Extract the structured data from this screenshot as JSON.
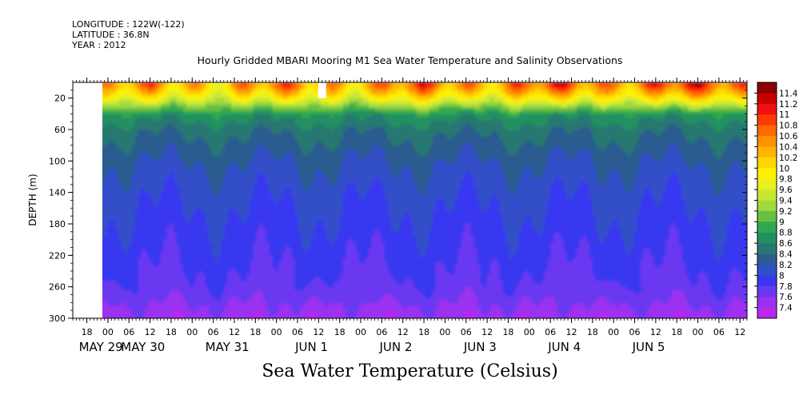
{
  "header": {
    "longitude": "LONGITUDE : 122W(-122)",
    "latitude": "LATITUDE : 36.8N",
    "year": "YEAR : 2012"
  },
  "title": "Hourly Gridded MBARI Mooring M1 Sea Water Temperature and Salinity Observations",
  "bottom_title": "Sea Water Temperature (Celsius)",
  "chart_data": {
    "type": "heatmap",
    "title": "Hourly Gridded MBARI Mooring M1 Sea Water Temperature and Salinity Observations",
    "xlabel": "",
    "ylabel": "DEPTH (m)",
    "variable": "Sea Water Temperature (Celsius)",
    "y_axis": {
      "range": [
        0,
        300
      ],
      "reversed": true,
      "ticks": [
        20,
        60,
        100,
        140,
        180,
        220,
        260,
        300
      ]
    },
    "x_axis": {
      "start": "2012-05-28T14:00",
      "end": "2012-06-05T14:00",
      "hour_ticks": [
        {
          "t": "2012-05-28T18:00",
          "label": "18"
        },
        {
          "t": "2012-05-29T00:00",
          "label": "00"
        },
        {
          "t": "2012-05-29T06:00",
          "label": "06"
        },
        {
          "t": "2012-05-29T12:00",
          "label": "12"
        },
        {
          "t": "2012-05-29T18:00",
          "label": "18"
        },
        {
          "t": "2012-05-30T00:00",
          "label": "00"
        },
        {
          "t": "2012-05-30T06:00",
          "label": "06"
        },
        {
          "t": "2012-05-30T12:00",
          "label": "12"
        },
        {
          "t": "2012-05-30T18:00",
          "label": "18"
        },
        {
          "t": "2012-05-31T00:00",
          "label": "00"
        },
        {
          "t": "2012-05-31T06:00",
          "label": "06"
        },
        {
          "t": "2012-05-31T12:00",
          "label": "12"
        },
        {
          "t": "2012-05-31T18:00",
          "label": "18"
        },
        {
          "t": "2012-06-01T00:00",
          "label": "00"
        },
        {
          "t": "2012-06-01T06:00",
          "label": "06"
        },
        {
          "t": "2012-06-01T12:00",
          "label": "12"
        },
        {
          "t": "2012-06-01T18:00",
          "label": "18"
        },
        {
          "t": "2012-06-02T00:00",
          "label": "00"
        },
        {
          "t": "2012-06-02T06:00",
          "label": "06"
        },
        {
          "t": "2012-06-02T12:00",
          "label": "12"
        },
        {
          "t": "2012-06-02T18:00",
          "label": "18"
        },
        {
          "t": "2012-06-03T00:00",
          "label": "00"
        },
        {
          "t": "2012-06-03T06:00",
          "label": "06"
        },
        {
          "t": "2012-06-03T12:00",
          "label": "12"
        },
        {
          "t": "2012-06-03T18:00",
          "label": "18"
        },
        {
          "t": "2012-06-04T00:00",
          "label": "00"
        },
        {
          "t": "2012-06-04T06:00",
          "label": "06"
        },
        {
          "t": "2012-06-04T12:00",
          "label": "12"
        },
        {
          "t": "2012-06-04T18:00",
          "label": "18"
        },
        {
          "t": "2012-06-05T00:00",
          "label": "00"
        },
        {
          "t": "2012-06-05T06:00",
          "label": "06"
        },
        {
          "t": "2012-06-05T12:00",
          "label": "12"
        }
      ],
      "date_labels": [
        {
          "t": "2012-05-28T22:00",
          "label": "MAY 29"
        },
        {
          "t": "2012-05-29T10:00",
          "label": "MAY 30"
        },
        {
          "t": "2012-05-30T10:00",
          "label": "MAY 31"
        },
        {
          "t": "2012-05-31T10:00",
          "label": "JUN  1"
        },
        {
          "t": "2012-06-01T10:00",
          "label": "JUN  2"
        },
        {
          "t": "2012-06-02T10:00",
          "label": "JUN  3"
        },
        {
          "t": "2012-06-03T10:00",
          "label": "JUN  4"
        },
        {
          "t": "2012-06-04T10:00",
          "label": "JUN  5"
        }
      ]
    },
    "data_start": "2012-05-28T18:00",
    "missing_block": {
      "t": "2012-05-31T13:00",
      "depth": [
        0,
        20
      ]
    },
    "colorbar": {
      "levels": [
        11.4,
        11.2,
        11,
        10.8,
        10.6,
        10.4,
        10.2,
        10,
        9.8,
        9.6,
        9.4,
        9.2,
        9,
        8.8,
        8.6,
        8.4,
        8.2,
        8,
        7.8,
        7.6,
        7.4
      ],
      "labels": [
        "11.4",
        "11.2",
        "11",
        "10.8",
        "10.6",
        "10.4",
        "10.2",
        "10",
        "9.8",
        "9.6",
        "9.4",
        "9.2",
        "9",
        "8.8",
        "8.6",
        "8.4",
        "8.2",
        "8",
        "7.8",
        "7.6",
        "7.4"
      ],
      "colors": [
        "#8b0000",
        "#c80000",
        "#f01010",
        "#ff3a00",
        "#ff6a00",
        "#ff9000",
        "#ffb400",
        "#ffd800",
        "#fff000",
        "#e8f020",
        "#c8e830",
        "#a0d840",
        "#68c040",
        "#30a850",
        "#209060",
        "#287870",
        "#2c5c90",
        "#3050c8",
        "#3838f0",
        "#6a38f0",
        "#9a30f0",
        "#b828f0"
      ]
    },
    "profile": {
      "depths": [
        0,
        10,
        20,
        30,
        40,
        60,
        100,
        140,
        180,
        220,
        260,
        280,
        300
      ],
      "values": [
        10.3,
        10.0,
        9.6,
        9.1,
        8.7,
        8.45,
        8.2,
        8.05,
        7.95,
        7.85,
        7.75,
        7.6,
        7.45
      ]
    }
  }
}
